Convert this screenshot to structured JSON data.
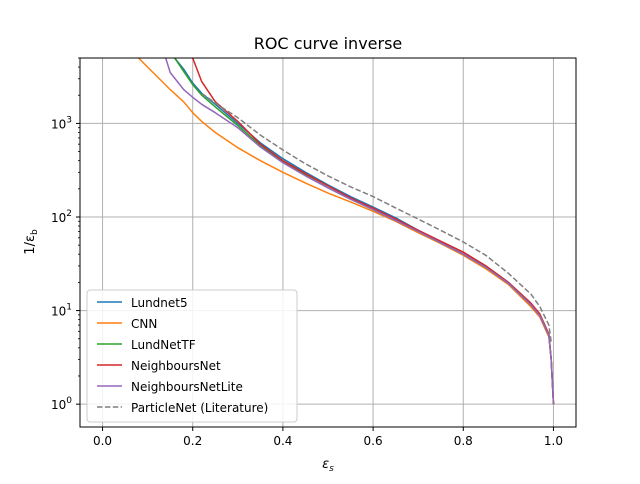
{
  "chart_data": {
    "type": "line",
    "title": "ROC curve inverse",
    "xlabel": "ε",
    "xlabel_sub": "s",
    "ylabel": "1/ε",
    "ylabel_sub": "b",
    "xlim": [
      -0.05,
      1.05
    ],
    "ylim": [
      0.57,
      5000
    ],
    "yscale": "log",
    "grid": true,
    "legend_position": "lower-left",
    "xticks": [
      {
        "value": 0.0,
        "label": "0.0"
      },
      {
        "value": 0.2,
        "label": "0.2"
      },
      {
        "value": 0.4,
        "label": "0.4"
      },
      {
        "value": 0.6,
        "label": "0.6"
      },
      {
        "value": 0.8,
        "label": "0.8"
      },
      {
        "value": 1.0,
        "label": "1.0"
      }
    ],
    "yticks": [
      {
        "value": 1,
        "base": "10",
        "exp": "0"
      },
      {
        "value": 10,
        "base": "10",
        "exp": "1"
      },
      {
        "value": 100,
        "base": "10",
        "exp": "2"
      },
      {
        "value": 1000,
        "base": "10",
        "exp": "3"
      }
    ],
    "series": [
      {
        "name": "Lundnet5",
        "color": "#1f77b4",
        "dash": "solid",
        "x": [
          0.16,
          0.18,
          0.2,
          0.22,
          0.25,
          0.3,
          0.35,
          0.4,
          0.45,
          0.5,
          0.55,
          0.6,
          0.65,
          0.7,
          0.75,
          0.8,
          0.85,
          0.9,
          0.95,
          0.97,
          0.99,
          0.995,
          1.0
        ],
        "y": [
          5000,
          3800,
          2700,
          2100,
          1600,
          1000,
          620,
          420,
          300,
          220,
          165,
          128,
          98,
          72,
          55,
          42,
          30,
          20,
          12,
          9,
          5.5,
          3,
          1
        ]
      },
      {
        "name": "CNN",
        "color": "#ff7f0e",
        "dash": "solid",
        "x": [
          0.08,
          0.1,
          0.12,
          0.15,
          0.18,
          0.2,
          0.22,
          0.25,
          0.3,
          0.35,
          0.4,
          0.45,
          0.5,
          0.55,
          0.6,
          0.65,
          0.7,
          0.75,
          0.8,
          0.85,
          0.9,
          0.95,
          0.97,
          0.99,
          0.995,
          1.0
        ],
        "y": [
          5000,
          4000,
          3200,
          2300,
          1700,
          1300,
          1050,
          800,
          550,
          400,
          300,
          230,
          180,
          145,
          115,
          90,
          68,
          52,
          39,
          28,
          19,
          11,
          8.5,
          5.2,
          3,
          1
        ]
      },
      {
        "name": "LundNetTF",
        "color": "#2ca02c",
        "dash": "solid",
        "x": [
          0.16,
          0.18,
          0.2,
          0.22,
          0.25,
          0.3,
          0.35,
          0.4,
          0.45,
          0.5,
          0.55,
          0.6,
          0.65,
          0.7,
          0.75,
          0.8,
          0.85,
          0.9,
          0.95,
          0.97,
          0.99,
          0.995,
          1.0
        ],
        "y": [
          5000,
          3600,
          2600,
          2000,
          1500,
          950,
          580,
          390,
          280,
          205,
          155,
          120,
          92,
          70,
          53,
          40,
          29,
          19.5,
          11.5,
          8.8,
          5.4,
          3,
          1
        ]
      },
      {
        "name": "NeighboursNet",
        "color": "#d62728",
        "dash": "solid",
        "x": [
          0.2,
          0.22,
          0.25,
          0.3,
          0.35,
          0.4,
          0.45,
          0.5,
          0.55,
          0.6,
          0.65,
          0.7,
          0.75,
          0.8,
          0.85,
          0.9,
          0.95,
          0.97,
          0.99,
          0.995,
          1.0
        ],
        "y": [
          5000,
          2800,
          1700,
          1050,
          600,
          400,
          290,
          215,
          160,
          124,
          95,
          72,
          55,
          42,
          30,
          20,
          12,
          9.2,
          5.6,
          3,
          1
        ]
      },
      {
        "name": "NeighboursNetLite",
        "color": "#9467bd",
        "dash": "solid",
        "x": [
          0.14,
          0.15,
          0.18,
          0.2,
          0.22,
          0.25,
          0.3,
          0.35,
          0.4,
          0.45,
          0.5,
          0.55,
          0.6,
          0.65,
          0.7,
          0.75,
          0.8,
          0.85,
          0.9,
          0.95,
          0.97,
          0.99,
          0.995,
          1.0
        ],
        "y": [
          5000,
          3500,
          2300,
          1900,
          1600,
          1300,
          900,
          560,
          380,
          275,
          205,
          155,
          120,
          92,
          70,
          53,
          40,
          29,
          19.5,
          11.5,
          8.8,
          5.4,
          3,
          1
        ]
      },
      {
        "name": "ParticleNet (Literature)",
        "color": "#7f7f7f",
        "dash": "dashed",
        "x": [
          0.22,
          0.25,
          0.3,
          0.35,
          0.4,
          0.45,
          0.5,
          0.55,
          0.6,
          0.65,
          0.7,
          0.75,
          0.8,
          0.85,
          0.9,
          0.95,
          0.97,
          0.99,
          0.995
        ],
        "y": [
          2100,
          1650,
          1150,
          750,
          520,
          370,
          275,
          210,
          165,
          125,
          95,
          72,
          54,
          39,
          25,
          15,
          11,
          7,
          4.6
        ]
      }
    ]
  }
}
